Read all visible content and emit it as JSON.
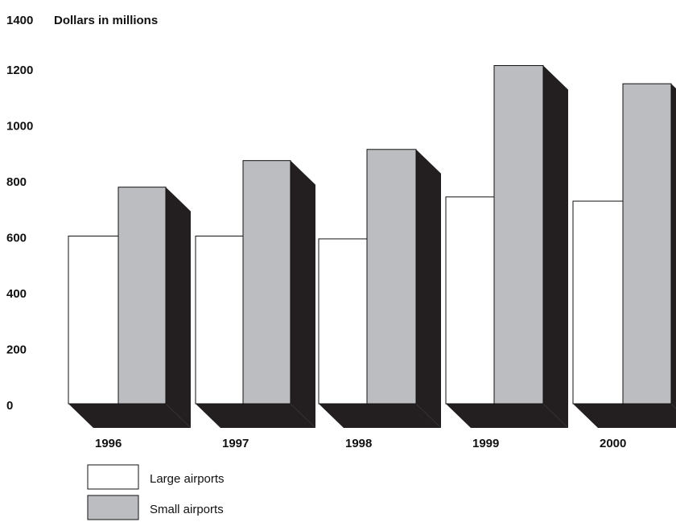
{
  "chart_data": {
    "type": "bar",
    "title": "",
    "ylabel": "Dollars in millions",
    "xlabel": "",
    "ylim": [
      0,
      1400
    ],
    "yticks": [
      0,
      200,
      400,
      600,
      800,
      1000,
      1200,
      1400
    ],
    "categories": [
      "1996",
      "1997",
      "1998",
      "1999",
      "2000"
    ],
    "series": [
      {
        "name": "Large airports",
        "color": "#ffffff",
        "values": [
          600,
          600,
          590,
          740,
          725
        ]
      },
      {
        "name": "Small airports",
        "color": "#bcbdc0",
        "values": [
          775,
          870,
          910,
          1210,
          1145
        ]
      }
    ],
    "shadow_color": "#231f20",
    "grid": false,
    "legend_position": "bottom-left",
    "style": "3d-extruded"
  }
}
